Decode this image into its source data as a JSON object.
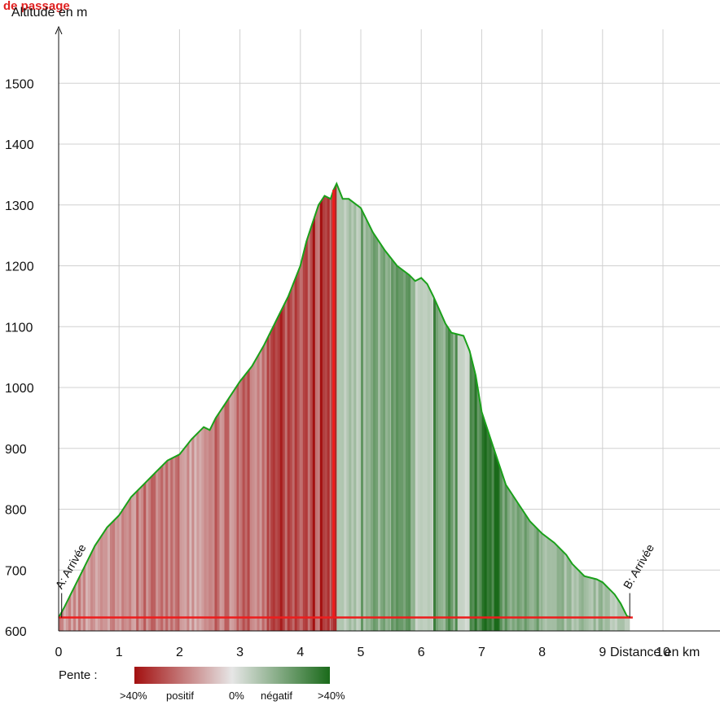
{
  "overlay_text": "de passage",
  "legend": {
    "title": "Pente :",
    "labels": [
      ">40%",
      "positif",
      "0%",
      "négatif",
      ">40%"
    ],
    "colors": [
      "#a31010",
      "#e6e6e6",
      "#1a6a1a"
    ]
  },
  "colors": {
    "profile_line": "#1aa01a",
    "route_line": "#ee1c1c",
    "uphill": "#a31010",
    "flat": "#e6e6e6",
    "downhill": "#1a6a1a",
    "grid": "#d0d0d0"
  },
  "chart_data": {
    "type": "area",
    "title": "",
    "xlabel": "Distance en km",
    "ylabel": "Altitude en m",
    "xlim": [
      0,
      10.9
    ],
    "ylim": [
      600,
      1590
    ],
    "x_ticks": [
      0,
      1,
      2,
      3,
      4,
      5,
      6,
      7,
      8,
      9,
      10
    ],
    "y_ticks": [
      600,
      700,
      800,
      900,
      1000,
      1100,
      1200,
      1300,
      1400,
      1500
    ],
    "grid": true,
    "series": [
      {
        "x": [
          0,
          0.1,
          0.2,
          0.4,
          0.6,
          0.8,
          1.0,
          1.2,
          1.4,
          1.6,
          1.8,
          2.0,
          2.2,
          2.4,
          2.5,
          2.6,
          2.8,
          3.0,
          3.2,
          3.4,
          3.6,
          3.8,
          4.0,
          4.1,
          4.2,
          4.3,
          4.4,
          4.5,
          4.55,
          4.6,
          4.7,
          4.8,
          5.0,
          5.2,
          5.4,
          5.6,
          5.8,
          5.9,
          6.0,
          6.1,
          6.2,
          6.4,
          6.5,
          6.7,
          6.8,
          6.9,
          7.0,
          7.2,
          7.4,
          7.6,
          7.8,
          8.0,
          8.2,
          8.4,
          8.5,
          8.7,
          8.9,
          9.0,
          9.2,
          9.3,
          9.4,
          9.45
        ],
        "y": [
          622,
          640,
          660,
          700,
          740,
          770,
          790,
          820,
          840,
          860,
          880,
          890,
          915,
          935,
          930,
          950,
          980,
          1010,
          1035,
          1070,
          1110,
          1150,
          1200,
          1240,
          1270,
          1300,
          1315,
          1310,
          1325,
          1335,
          1310,
          1310,
          1295,
          1255,
          1225,
          1200,
          1185,
          1175,
          1180,
          1170,
          1150,
          1105,
          1090,
          1085,
          1060,
          1020,
          960,
          900,
          840,
          810,
          780,
          760,
          745,
          725,
          710,
          690,
          685,
          680,
          660,
          645,
          625,
          622
        ]
      }
    ],
    "slope_bands": [
      {
        "from": 0.0,
        "to": 1.0,
        "value": 0.45
      },
      {
        "from": 1.0,
        "to": 2.0,
        "value": 0.55
      },
      {
        "from": 2.0,
        "to": 2.5,
        "value": 0.4
      },
      {
        "from": 2.5,
        "to": 3.0,
        "value": 0.6
      },
      {
        "from": 3.0,
        "to": 3.5,
        "value": 0.65
      },
      {
        "from": 3.5,
        "to": 4.0,
        "value": 0.8
      },
      {
        "from": 4.0,
        "to": 4.5,
        "value": 0.9
      },
      {
        "from": 4.5,
        "to": 4.6,
        "value": 1.0
      },
      {
        "from": 4.6,
        "to": 5.0,
        "value": -0.3
      },
      {
        "from": 5.0,
        "to": 5.5,
        "value": -0.55
      },
      {
        "from": 5.5,
        "to": 5.9,
        "value": -0.6
      },
      {
        "from": 5.9,
        "to": 6.2,
        "value": -0.2
      },
      {
        "from": 6.2,
        "to": 6.6,
        "value": -0.7
      },
      {
        "from": 6.6,
        "to": 6.8,
        "value": -0.15
      },
      {
        "from": 6.8,
        "to": 7.3,
        "value": -0.95
      },
      {
        "from": 7.3,
        "to": 8.0,
        "value": -0.6
      },
      {
        "from": 8.0,
        "to": 9.0,
        "value": -0.4
      },
      {
        "from": 9.0,
        "to": 9.45,
        "value": -0.3
      }
    ],
    "route_line_y": 622,
    "peak_marker_x": 4.55,
    "markers": [
      {
        "x": 0.05,
        "label": "A: Arrivée"
      },
      {
        "x": 9.45,
        "label": "B: Arrivée"
      }
    ]
  }
}
